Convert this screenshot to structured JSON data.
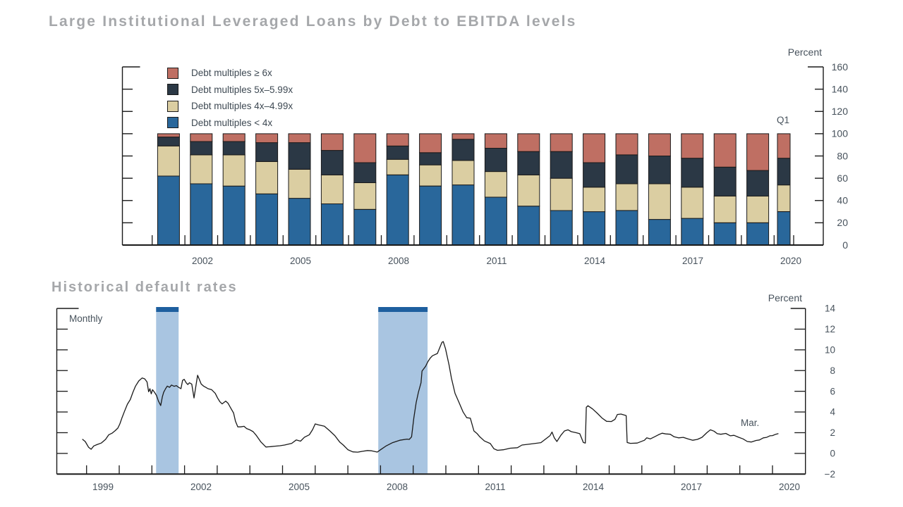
{
  "page": {
    "background": "#ffffff"
  },
  "colors": {
    "title_gray": "#A5A7AA",
    "axis_text": "#47525C",
    "legend_text": "#3E4953",
    "axis_line": "#1A1A1A",
    "line_color": "#1A1A1A",
    "recession_band": "#A9C5E1",
    "recession_cap": "#1E5F9F",
    "blue_lt4": "#29679B",
    "tan_4": "#DBCEA2",
    "navy_5": "#2B3845",
    "red_6": "#BF6F63"
  },
  "chart_data": [
    {
      "type": "bar",
      "stacked": true,
      "title": "Large Institutional Leveraged Loans by Debt to EBITDA levels",
      "unit_label": "Percent",
      "last_bar_label": "Q1",
      "ylim": [
        0,
        160
      ],
      "ytick_step": 20,
      "ytick_labels": [
        "0",
        "20",
        "40",
        "60",
        "80",
        "100",
        "120",
        "140",
        "160"
      ],
      "grid": false,
      "legend_position": "top-left-inside",
      "categories": [
        2001,
        2002,
        2003,
        2004,
        2005,
        2006,
        2007,
        2008,
        2009,
        2010,
        2011,
        2012,
        2013,
        2014,
        2015,
        2016,
        2017,
        2018,
        2019,
        2020
      ],
      "x_axis_labels": [
        "2002",
        "2005",
        "2008",
        "2011",
        "2014",
        "2017",
        "2020"
      ],
      "series": [
        {
          "name": "Debt multiples < 4x",
          "color": "#29679B",
          "values": [
            62,
            55,
            53,
            46,
            42,
            37,
            32,
            63,
            53,
            54,
            43,
            35,
            31,
            30,
            31,
            23,
            24,
            20,
            20,
            30
          ]
        },
        {
          "name": "Debt multiples 4x–4.99x",
          "color": "#DBCEA2",
          "values": [
            27,
            26,
            28,
            29,
            26,
            26,
            24,
            14,
            19,
            22,
            23,
            28,
            29,
            22,
            24,
            32,
            28,
            24,
            24,
            24
          ]
        },
        {
          "name": "Debt multiples 5x–5.99x",
          "color": "#2B3845",
          "values": [
            8,
            12,
            12,
            17,
            24,
            22,
            18,
            12,
            11,
            19,
            21,
            21,
            24,
            22,
            26,
            25,
            26,
            26,
            23,
            24
          ]
        },
        {
          "name": "Debt multiples ≥ 6x",
          "color": "#BF6F63",
          "values": [
            3,
            7,
            7,
            8,
            8,
            15,
            26,
            11,
            17,
            5,
            13,
            16,
            16,
            26,
            19,
            20,
            22,
            30,
            33,
            22
          ]
        }
      ]
    },
    {
      "type": "line",
      "title": "Historical default rates",
      "frequency_label": "Monthly",
      "unit_label": "Percent",
      "end_label": "Mar.",
      "ylim": [
        -2,
        14
      ],
      "ytick_step": 2,
      "ytick_labels": [
        "−2",
        "0",
        "2",
        "4",
        "6",
        "8",
        "10",
        "12",
        "14"
      ],
      "grid": false,
      "x_axis_labels": [
        "1999",
        "2002",
        "2005",
        "2008",
        "2011",
        "2014",
        "2017",
        "2020"
      ],
      "recession_bands": [
        [
          2001.13,
          2001.82
        ],
        [
          2007.93,
          2009.44
        ]
      ],
      "xlabel": "",
      "ylabel": "Percent",
      "points": [
        [
          1998.88,
          1.35
        ],
        [
          1998.96,
          1.15
        ],
        [
          1999.06,
          0.6
        ],
        [
          1999.14,
          0.4
        ],
        [
          1999.22,
          0.72
        ],
        [
          1999.32,
          0.85
        ],
        [
          1999.45,
          1.0
        ],
        [
          1999.58,
          1.35
        ],
        [
          1999.68,
          1.8
        ],
        [
          1999.78,
          1.95
        ],
        [
          1999.88,
          2.2
        ],
        [
          1999.96,
          2.45
        ],
        [
          2000.02,
          2.85
        ],
        [
          2000.08,
          3.4
        ],
        [
          2000.16,
          4.05
        ],
        [
          2000.25,
          4.75
        ],
        [
          2000.34,
          5.2
        ],
        [
          2000.42,
          5.9
        ],
        [
          2000.5,
          6.5
        ],
        [
          2000.6,
          7.0
        ],
        [
          2000.7,
          7.28
        ],
        [
          2000.78,
          7.2
        ],
        [
          2000.85,
          6.9
        ],
        [
          2000.9,
          5.95
        ],
        [
          2000.94,
          6.25
        ],
        [
          2000.98,
          5.75
        ],
        [
          2001.02,
          6.15
        ],
        [
          2001.08,
          5.9
        ],
        [
          2001.14,
          5.6
        ],
        [
          2001.2,
          5.05
        ],
        [
          2001.27,
          4.62
        ],
        [
          2001.32,
          5.45
        ],
        [
          2001.36,
          5.9
        ],
        [
          2001.42,
          6.25
        ],
        [
          2001.47,
          6.5
        ],
        [
          2001.54,
          6.38
        ],
        [
          2001.6,
          6.6
        ],
        [
          2001.68,
          6.48
        ],
        [
          2001.75,
          6.55
        ],
        [
          2001.82,
          6.38
        ],
        [
          2001.89,
          6.25
        ],
        [
          2001.94,
          7.05
        ],
        [
          2001.99,
          7.15
        ],
        [
          2002.05,
          6.82
        ],
        [
          2002.1,
          6.65
        ],
        [
          2002.15,
          6.82
        ],
        [
          2002.22,
          6.7
        ],
        [
          2002.29,
          5.35
        ],
        [
          2002.4,
          7.55
        ],
        [
          2002.51,
          6.7
        ],
        [
          2002.58,
          6.5
        ],
        [
          2002.65,
          6.38
        ],
        [
          2002.72,
          6.25
        ],
        [
          2002.83,
          6.15
        ],
        [
          2002.94,
          5.8
        ],
        [
          2003.01,
          5.35
        ],
        [
          2003.08,
          5.0
        ],
        [
          2003.15,
          4.78
        ],
        [
          2003.26,
          5.05
        ],
        [
          2003.33,
          4.85
        ],
        [
          2003.42,
          4.35
        ],
        [
          2003.5,
          3.9
        ],
        [
          2003.56,
          3.1
        ],
        [
          2003.63,
          2.56
        ],
        [
          2003.72,
          2.56
        ],
        [
          2003.82,
          2.62
        ],
        [
          2003.9,
          2.4
        ],
        [
          2004.0,
          2.28
        ],
        [
          2004.1,
          2.1
        ],
        [
          2004.2,
          1.72
        ],
        [
          2004.34,
          1.1
        ],
        [
          2004.49,
          0.62
        ],
        [
          2004.63,
          0.65
        ],
        [
          2004.77,
          0.7
        ],
        [
          2004.92,
          0.74
        ],
        [
          2005.06,
          0.81
        ],
        [
          2005.28,
          0.97
        ],
        [
          2005.42,
          1.3
        ],
        [
          2005.55,
          1.18
        ],
        [
          2005.67,
          1.56
        ],
        [
          2005.82,
          1.8
        ],
        [
          2005.92,
          2.3
        ],
        [
          2006.0,
          2.85
        ],
        [
          2006.1,
          2.75
        ],
        [
          2006.28,
          2.63
        ],
        [
          2006.45,
          2.17
        ],
        [
          2006.6,
          1.72
        ],
        [
          2006.75,
          1.1
        ],
        [
          2006.86,
          0.81
        ],
        [
          2007.0,
          0.36
        ],
        [
          2007.15,
          0.15
        ],
        [
          2007.3,
          0.12
        ],
        [
          2007.45,
          0.2
        ],
        [
          2007.6,
          0.28
        ],
        [
          2007.73,
          0.25
        ],
        [
          2007.9,
          0.13
        ],
        [
          2008.0,
          0.35
        ],
        [
          2008.16,
          0.7
        ],
        [
          2008.37,
          1.04
        ],
        [
          2008.59,
          1.27
        ],
        [
          2008.81,
          1.38
        ],
        [
          2008.88,
          1.35
        ],
        [
          2008.95,
          1.6
        ],
        [
          2009.02,
          3.42
        ],
        [
          2009.09,
          4.9
        ],
        [
          2009.16,
          5.91
        ],
        [
          2009.24,
          6.82
        ],
        [
          2009.27,
          7.95
        ],
        [
          2009.38,
          8.41
        ],
        [
          2009.45,
          8.86
        ],
        [
          2009.52,
          9.2
        ],
        [
          2009.59,
          9.43
        ],
        [
          2009.74,
          9.65
        ],
        [
          2009.88,
          10.72
        ],
        [
          2009.92,
          10.8
        ],
        [
          2009.99,
          10.11
        ],
        [
          2010.1,
          8.52
        ],
        [
          2010.17,
          7.27
        ],
        [
          2010.28,
          5.8
        ],
        [
          2010.39,
          5.01
        ],
        [
          2010.53,
          3.99
        ],
        [
          2010.64,
          3.45
        ],
        [
          2010.75,
          3.4
        ],
        [
          2010.86,
          2.17
        ],
        [
          2010.96,
          1.9
        ],
        [
          2011.04,
          1.6
        ],
        [
          2011.18,
          1.2
        ],
        [
          2011.36,
          0.95
        ],
        [
          2011.47,
          0.45
        ],
        [
          2011.58,
          0.3
        ],
        [
          2011.76,
          0.35
        ],
        [
          2011.97,
          0.5
        ],
        [
          2012.19,
          0.55
        ],
        [
          2012.33,
          0.81
        ],
        [
          2012.62,
          0.92
        ],
        [
          2012.91,
          1.04
        ],
        [
          2013.19,
          1.72
        ],
        [
          2013.25,
          2.06
        ],
        [
          2013.32,
          1.5
        ],
        [
          2013.4,
          1.15
        ],
        [
          2013.52,
          1.75
        ],
        [
          2013.63,
          2.17
        ],
        [
          2013.74,
          2.28
        ],
        [
          2013.84,
          2.1
        ],
        [
          2013.99,
          2.0
        ],
        [
          2014.1,
          1.9
        ],
        [
          2014.21,
          1.05
        ],
        [
          2014.27,
          1.0
        ],
        [
          2014.3,
          4.45
        ],
        [
          2014.35,
          4.6
        ],
        [
          2014.49,
          4.3
        ],
        [
          2014.64,
          3.87
        ],
        [
          2014.78,
          3.42
        ],
        [
          2014.92,
          3.1
        ],
        [
          2015.07,
          3.08
        ],
        [
          2015.18,
          3.3
        ],
        [
          2015.25,
          3.76
        ],
        [
          2015.36,
          3.8
        ],
        [
          2015.47,
          3.7
        ],
        [
          2015.52,
          3.65
        ],
        [
          2015.55,
          1.05
        ],
        [
          2015.65,
          0.97
        ],
        [
          2015.86,
          1.0
        ],
        [
          2016.08,
          1.27
        ],
        [
          2016.15,
          1.5
        ],
        [
          2016.26,
          1.4
        ],
        [
          2016.4,
          1.62
        ],
        [
          2016.51,
          1.8
        ],
        [
          2016.62,
          1.95
        ],
        [
          2016.73,
          1.88
        ],
        [
          2016.87,
          1.85
        ],
        [
          2016.98,
          1.62
        ],
        [
          2017.12,
          1.5
        ],
        [
          2017.27,
          1.55
        ],
        [
          2017.41,
          1.4
        ],
        [
          2017.56,
          1.27
        ],
        [
          2017.7,
          1.35
        ],
        [
          2017.84,
          1.55
        ],
        [
          2017.99,
          2.0
        ],
        [
          2018.1,
          2.28
        ],
        [
          2018.21,
          2.15
        ],
        [
          2018.31,
          1.9
        ],
        [
          2018.42,
          1.85
        ],
        [
          2018.57,
          1.93
        ],
        [
          2018.71,
          1.7
        ],
        [
          2018.82,
          1.75
        ],
        [
          2018.96,
          1.56
        ],
        [
          2019.1,
          1.4
        ],
        [
          2019.23,
          1.15
        ],
        [
          2019.35,
          1.1
        ],
        [
          2019.5,
          1.25
        ],
        [
          2019.6,
          1.3
        ],
        [
          2019.72,
          1.5
        ],
        [
          2019.82,
          1.55
        ],
        [
          2019.92,
          1.7
        ],
        [
          2020.0,
          1.72
        ],
        [
          2020.1,
          1.85
        ],
        [
          2020.17,
          1.9
        ]
      ]
    }
  ]
}
